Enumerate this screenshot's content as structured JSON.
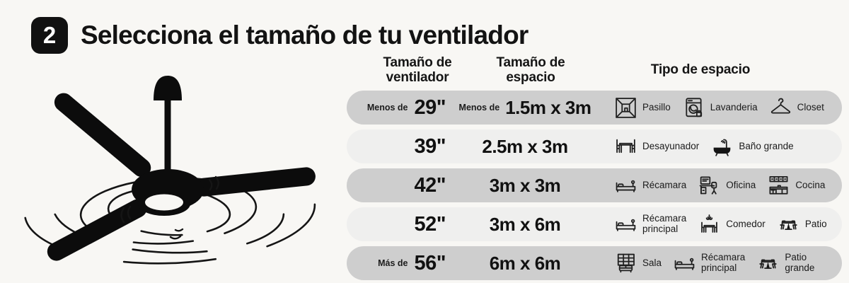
{
  "colors": {
    "background": "#f8f7f4",
    "ink": "#111111",
    "badge_bg": "#111111",
    "badge_text": "#ffffff",
    "row_dark": "#cecece",
    "row_light": "#efefee"
  },
  "header": {
    "step_number": "2",
    "title": "Selecciona el tamaño de tu ventilador"
  },
  "illustration": {
    "name": "ceiling-fan"
  },
  "table": {
    "columns": [
      {
        "label": "Tamaño de\nventilador"
      },
      {
        "label": "Tamaño de\nespacio"
      },
      {
        "label": "Tipo de espacio"
      }
    ],
    "rows": [
      {
        "shade": "dark",
        "fan_size_prefix": "Menos de",
        "fan_size": "29\"",
        "space_size_prefix": "Menos de",
        "space_size": "1.5m x 3m",
        "space_types": [
          {
            "icon": "hallway-icon",
            "label": "Pasillo"
          },
          {
            "icon": "washing-machine-icon",
            "label": "Lavanderia"
          },
          {
            "icon": "hanger-icon",
            "label": "Closet"
          }
        ]
      },
      {
        "shade": "light",
        "fan_size_prefix": "",
        "fan_size": "39\"",
        "space_size_prefix": "",
        "space_size": "2.5m x 3m",
        "space_types": [
          {
            "icon": "breakfast-table-icon",
            "label": "Desayunador"
          },
          {
            "icon": "bathtub-icon",
            "label": "Baño grande"
          }
        ]
      },
      {
        "shade": "dark",
        "fan_size_prefix": "",
        "fan_size": "42\"",
        "space_size_prefix": "",
        "space_size": "3m x 3m",
        "space_types": [
          {
            "icon": "bed-icon",
            "label": "Récamara"
          },
          {
            "icon": "office-desk-icon",
            "label": "Oficina"
          },
          {
            "icon": "kitchen-icon",
            "label": "Cocina"
          }
        ]
      },
      {
        "shade": "light",
        "fan_size_prefix": "",
        "fan_size": "52\"",
        "space_size_prefix": "",
        "space_size": "3m x 6m",
        "space_types": [
          {
            "icon": "bed-lamp-icon",
            "label": "Récamara\nprincipal"
          },
          {
            "icon": "dining-chandelier-icon",
            "label": "Comedor"
          },
          {
            "icon": "patio-table-icon",
            "label": "Patio"
          }
        ]
      },
      {
        "shade": "dark",
        "fan_size_prefix": "Más de",
        "fan_size": "56\"",
        "space_size_prefix": "",
        "space_size": "6m x 6m",
        "space_types": [
          {
            "icon": "living-room-icon",
            "label": "Sala"
          },
          {
            "icon": "bed-lamp-icon",
            "label": "Récamara\nprincipal"
          },
          {
            "icon": "patio-table-icon",
            "label": "Patio\ngrande"
          }
        ]
      }
    ]
  }
}
